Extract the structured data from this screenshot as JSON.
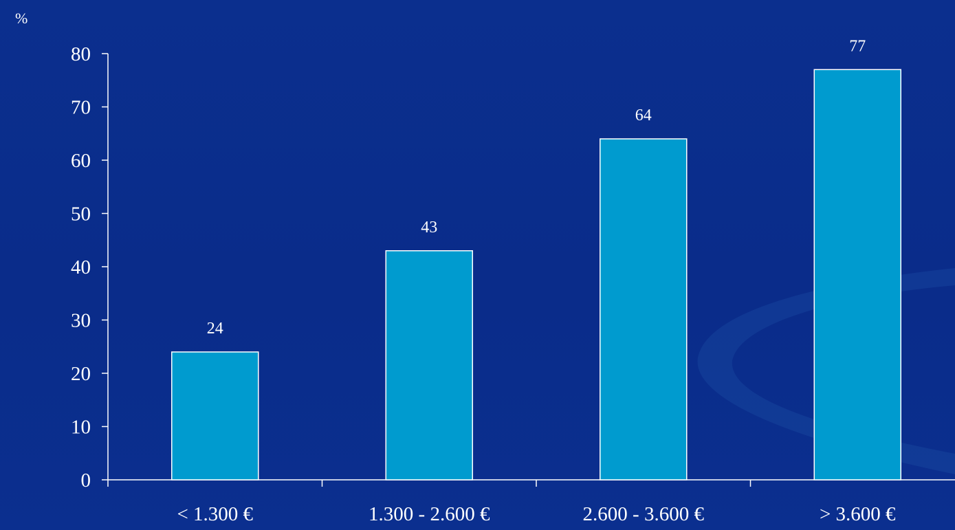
{
  "chart_data": {
    "type": "bar",
    "unit_label": "%",
    "categories": [
      "< 1.300 €",
      "1.300 - 2.600 €",
      "2.600 - 3.600 €",
      "> 3.600 €"
    ],
    "values": [
      24,
      43,
      64,
      77
    ],
    "data_labels": [
      "24",
      "43",
      "64",
      "77"
    ],
    "yticks": [
      0,
      10,
      20,
      30,
      40,
      50,
      60,
      70,
      80
    ],
    "ylim": [
      0,
      80
    ],
    "title": "",
    "xlabel": "",
    "ylabel": "",
    "grid": false,
    "legend": "none",
    "colors": {
      "bar_fill": "#009bcf",
      "bar_outline": "#ffffff",
      "background": "#0b2f8e",
      "text": "#ffffff"
    }
  }
}
